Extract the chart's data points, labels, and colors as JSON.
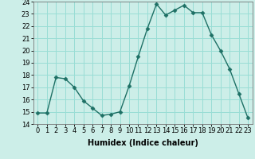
{
  "x": [
    0,
    1,
    2,
    3,
    4,
    5,
    6,
    7,
    8,
    9,
    10,
    11,
    12,
    13,
    14,
    15,
    16,
    17,
    18,
    19,
    20,
    21,
    22,
    23
  ],
  "y": [
    14.9,
    14.9,
    17.8,
    17.7,
    17.0,
    15.9,
    15.3,
    14.7,
    14.8,
    15.0,
    17.1,
    19.5,
    21.8,
    23.8,
    22.9,
    23.3,
    23.7,
    23.1,
    23.1,
    21.3,
    20.0,
    18.5,
    16.5,
    14.5
  ],
  "line_color": "#1e7065",
  "marker_color": "#1e7065",
  "bg_color": "#cceee8",
  "grid_color": "#99ddd5",
  "xlabel": "Humidex (Indice chaleur)",
  "ylim": [
    14,
    24
  ],
  "xlim_min": -0.5,
  "xlim_max": 23.5,
  "yticks": [
    14,
    15,
    16,
    17,
    18,
    19,
    20,
    21,
    22,
    23,
    24
  ],
  "xticks": [
    0,
    1,
    2,
    3,
    4,
    5,
    6,
    7,
    8,
    9,
    10,
    11,
    12,
    13,
    14,
    15,
    16,
    17,
    18,
    19,
    20,
    21,
    22,
    23
  ],
  "xlabel_fontsize": 7,
  "tick_fontsize": 6
}
